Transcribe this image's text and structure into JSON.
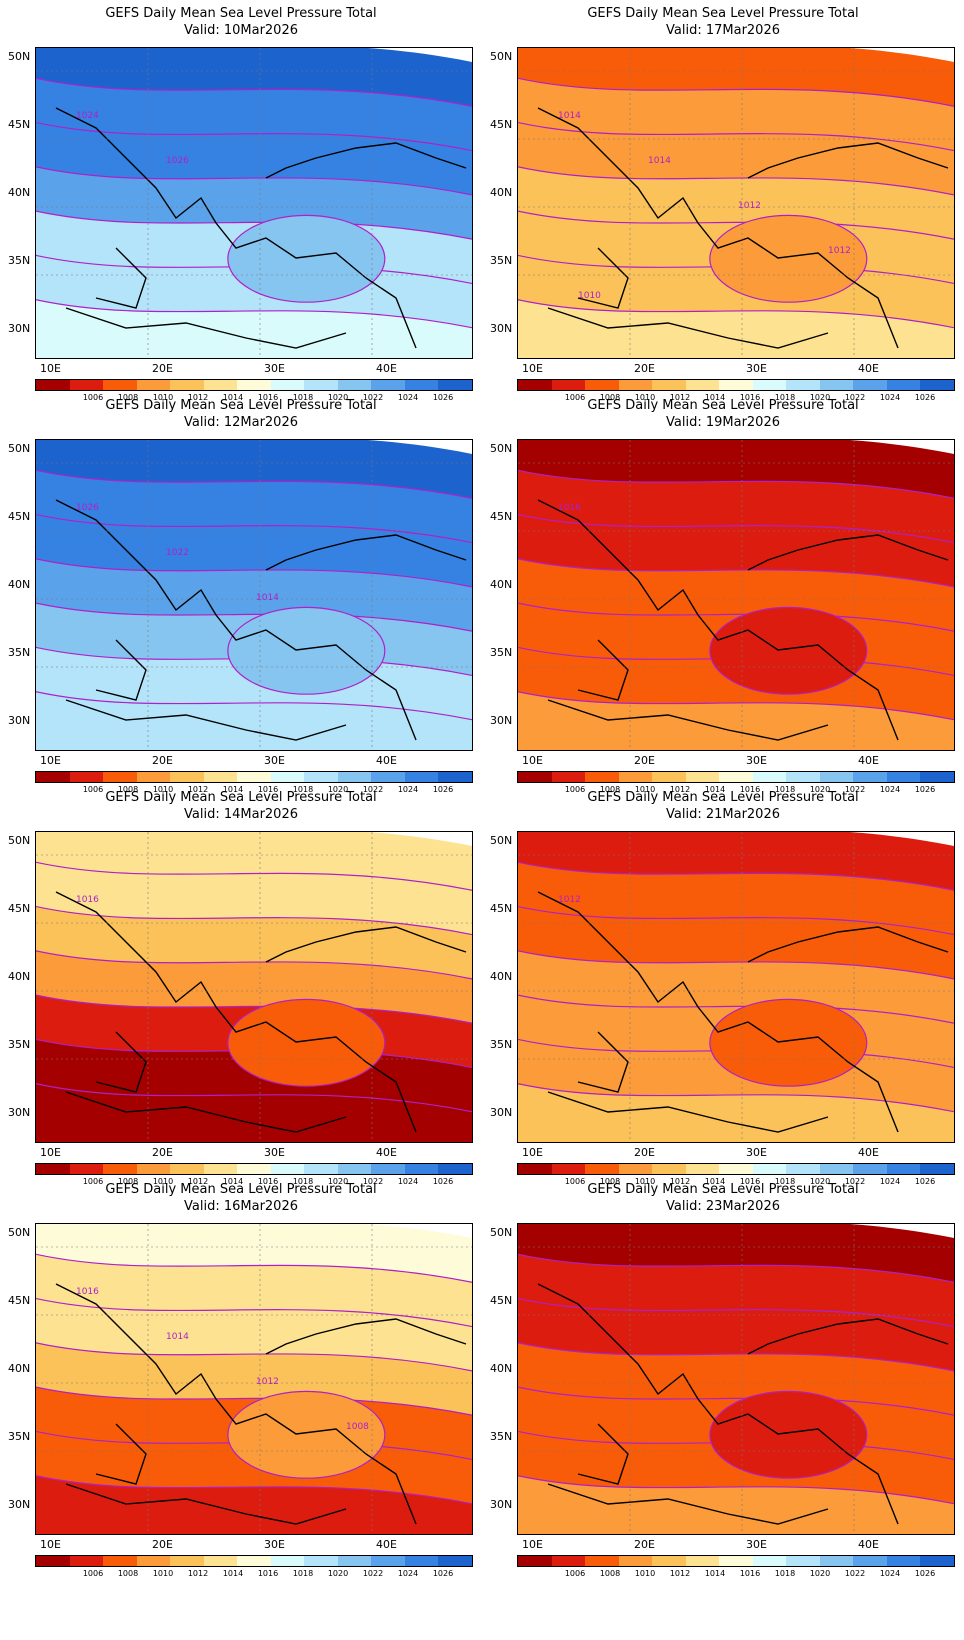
{
  "palette": [
    "#a50000",
    "#dd1c10",
    "#f95c09",
    "#fb9b3a",
    "#fcc25a",
    "#fde391",
    "#fefcd8",
    "#dafbfb",
    "#b3e4fa",
    "#86c5f0",
    "#5aa2ea",
    "#3682e2",
    "#1c63ce"
  ],
  "colorbar_labels": [
    "1006",
    "1008",
    "1010",
    "1012",
    "1014",
    "1016",
    "1018",
    "1020",
    "1022",
    "1024",
    "1026"
  ],
  "lat_labels": [
    "50N",
    "45N",
    "40N",
    "35N",
    "30N"
  ],
  "lon_labels": [
    "10E",
    "20E",
    "30E",
    "40E"
  ],
  "panels": [
    {
      "title": "GEFS Daily Mean Sea Level Pressure Total",
      "valid": "Valid: 10Mar2026",
      "base": 10,
      "gradient": 0.3,
      "contours": [
        "1024",
        "1026"
      ]
    },
    {
      "title": "GEFS Daily Mean Sea Level Pressure Total",
      "valid": "Valid: 17Mar2026",
      "base": 4,
      "gradient": 0.35,
      "contours": [
        "1014",
        "1014",
        "1012",
        "1012",
        "1010"
      ]
    },
    {
      "title": "GEFS Daily Mean Sea Level Pressure Total",
      "valid": "Valid: 12Mar2026",
      "base": 10,
      "gradient": 0.25,
      "contours": [
        "1026",
        "1022",
        "1014"
      ]
    },
    {
      "title": "GEFS Daily Mean Sea Level Pressure Total",
      "valid": "Valid: 19Mar2026",
      "base": 2,
      "gradient": 0.3,
      "contours": [
        "1016"
      ]
    },
    {
      "title": "GEFS Daily Mean Sea Level Pressure Total",
      "valid": "Valid: 14Mar2026",
      "base": 3,
      "gradient": 0.4,
      "contours": [
        "1016"
      ]
    },
    {
      "title": "GEFS Daily Mean Sea Level Pressure Total",
      "valid": "Valid: 21Mar2026",
      "base": 3,
      "gradient": 0.35,
      "contours": [
        "1012"
      ]
    },
    {
      "title": "GEFS Daily Mean Sea Level Pressure Total",
      "valid": "Valid: 16Mar2026",
      "base": 4,
      "gradient": 0.3,
      "contours": [
        "1016",
        "1014",
        "1012",
        "1008"
      ]
    },
    {
      "title": "GEFS Daily Mean Sea Level Pressure Total",
      "valid": "Valid: 23Mar2026",
      "base": 2,
      "gradient": 0.3,
      "contours": []
    }
  ]
}
